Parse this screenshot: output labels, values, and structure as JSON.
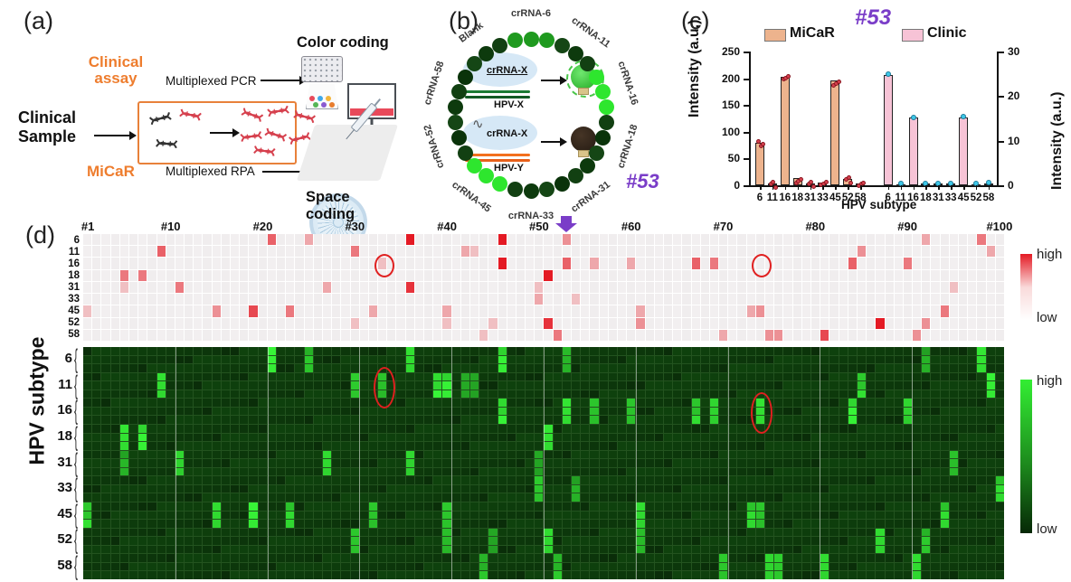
{
  "colors": {
    "orange": "#ee7d2e",
    "purple": "#7a3dc8",
    "red_high": "#e41a24",
    "green_high": "#33ee33",
    "micar_bar": "#edb38d",
    "clinic_bar": "#f7c3d6",
    "red_dot": "#d6414e",
    "cyan_dot": "#3fc8e8"
  },
  "panel_a": {
    "label": "(a)",
    "clinical_assay_l1": "Clinical",
    "clinical_assay_l2": "assay",
    "multiplexed_pcr": "Multiplexed PCR",
    "color_coding": "Color coding",
    "clinical_sample_l1": "Clinical",
    "clinical_sample_l2": "Sample",
    "micar": "MiCaR",
    "multiplexed_rpa": "Multiplexed RPA",
    "space_coding": "Space coding",
    "bead_colors": [
      "#e8495a",
      "#3fa8e8",
      "#f2b53a",
      "#55b555",
      "#8a5ad0",
      "#e87d2e"
    ]
  },
  "panel_b": {
    "label": "(b)",
    "sample_id": "#53",
    "segments": [
      "crRNA-6",
      "crRNA-11",
      "crRNA-16",
      "crRNA-18",
      "crRNA-31",
      "crRNA-33",
      "crRNA-45",
      "crRNA-52",
      "crRNA-58",
      "Blank"
    ],
    "bright_segments": [
      "crRNA-16",
      "crRNA-45"
    ],
    "medium_segments": [
      "crRNA-6"
    ],
    "match": {
      "crrna": "crRNA-X",
      "target": "HPV-X",
      "result": "on"
    },
    "mismatch": {
      "crrna": "crRNA-X",
      "target": "HPV-Y",
      "result": "off"
    }
  },
  "panel_c": {
    "label": "(c)",
    "title": "#53"
  },
  "chart_data": {
    "type": "bar",
    "title": "#53",
    "xlabel": "HPV subtype",
    "categories": [
      "6",
      "11",
      "16",
      "18",
      "31",
      "33",
      "45",
      "52",
      "58"
    ],
    "series": [
      {
        "name": "MiCaR",
        "axis": "left",
        "color": "#edb38d",
        "marker_color": "#d6414e",
        "values": [
          80,
          4,
          203,
          14,
          4,
          5,
          196,
          12,
          4
        ]
      },
      {
        "name": "Clinic",
        "axis": "right",
        "color": "#f7c3d6",
        "marker_color": "#3fc8e8",
        "values": [
          24.8,
          0.3,
          15.2,
          0.4,
          0.4,
          0.4,
          15.3,
          0.3,
          0.5
        ]
      }
    ],
    "left_axis": {
      "label": "Intensity (a.u.)",
      "ticks": [
        0,
        50,
        100,
        150,
        200,
        250
      ],
      "max": 250
    },
    "right_axis": {
      "label": "Intensity (a.u.)",
      "ticks": [
        0,
        10,
        20,
        30
      ],
      "max": 30
    },
    "legend_position": "top",
    "grid": false
  },
  "panel_d": {
    "label": "(d)",
    "ylabel": "HPV subtype",
    "scale_high": "high",
    "scale_low": "low",
    "col_ticks": [
      1,
      10,
      20,
      30,
      40,
      50,
      60,
      70,
      80,
      90,
      100
    ],
    "row_labels": [
      "6",
      "11",
      "16",
      "18",
      "31",
      "33",
      "45",
      "52",
      "58"
    ],
    "arrow_col": 53,
    "clinic_heatmap": {
      "type": "heatmap",
      "colormap": "white-to-red",
      "rows": 9,
      "cols": 100,
      "cells": {
        "6": {
          "21": 6,
          "25": 3,
          "36": 9,
          "46": 9,
          "53": 4,
          "92": 3,
          "98": 5
        },
        "11": {
          "9": 6,
          "30": 5,
          "42": 3,
          "43": 2,
          "85": 4,
          "99": 3
        },
        "16": {
          "33": 2,
          "46": 9,
          "53": 6,
          "56": 3,
          "60": 3,
          "67": 6,
          "69": 5,
          "84": 6,
          "90": 5
        },
        "18": {
          "5": 5,
          "7": 5,
          "51": 9
        },
        "31": {
          "5": 2,
          "11": 5,
          "27": 3,
          "36": 8,
          "50": 2,
          "95": 2
        },
        "33": {
          "50": 3,
          "54": 2
        },
        "45": {
          "1": 2,
          "15": 4,
          "19": 7,
          "23": 5,
          "32": 3,
          "40": 3,
          "61": 3,
          "73": 3,
          "74": 4,
          "94": 5
        },
        "52": {
          "30": 2,
          "40": 2,
          "45": 2,
          "51": 8,
          "61": 4,
          "87": 9,
          "92": 4
        },
        "58": {
          "44": 2,
          "52": 5,
          "70": 3,
          "75": 4,
          "76": 4,
          "81": 7,
          "91": 4
        }
      },
      "circled": [
        {
          "row": "16",
          "col": 33
        },
        {
          "row": "16",
          "col": 74
        }
      ]
    },
    "micar_heatmap": {
      "type": "heatmap",
      "colormap": "black-to-green",
      "rows": 27,
      "cols": 100,
      "subrows_per_label": 3,
      "cells": {
        "6": {
          "21": 9,
          "25": 7,
          "36": 9,
          "46": 9,
          "53": 7,
          "92": 6,
          "98": 9
        },
        "11": {
          "9": 9,
          "30": 8,
          "33": 7,
          "39": 9,
          "40": 9,
          "42": 6,
          "43": 6,
          "85": 8,
          "99": 9
        },
        "16": {
          "46": 9,
          "53": 9,
          "56": 7,
          "60": 7,
          "67": 8,
          "69": 8,
          "74": 9,
          "84": 9,
          "90": 8
        },
        "18": {
          "5": 9,
          "7": 9,
          "51": 9
        },
        "31": {
          "5": 6,
          "11": 8,
          "27": 8,
          "36": 8,
          "50": 6,
          "95": 7
        },
        "33": {
          "50": 7,
          "54": 6,
          "100": 8
        },
        "45": {
          "1": 8,
          "15": 8,
          "19": 9,
          "23": 8,
          "32": 7,
          "40": 7,
          "61": 8,
          "73": 8,
          "74": 7,
          "94": 8
        },
        "52": {
          "30": 7,
          "40": 7,
          "45": 6,
          "51": 8,
          "61": 7,
          "87": 9,
          "92": 7
        },
        "58": {
          "44": 7,
          "52": 7,
          "70": 7,
          "75": 8,
          "76": 8,
          "81": 9,
          "91": 8
        }
      },
      "circled": [
        {
          "row": "11",
          "col": 33
        },
        {
          "row": "16",
          "col": 74
        }
      ]
    }
  }
}
